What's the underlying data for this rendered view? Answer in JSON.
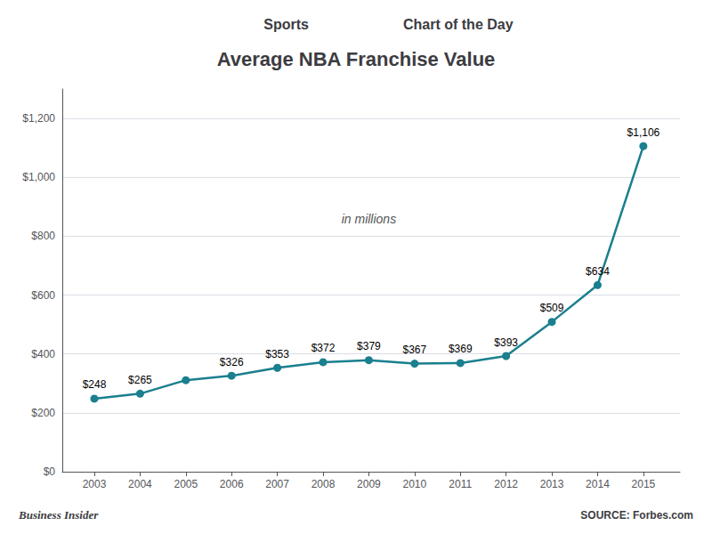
{
  "chart_data": {
    "type": "line",
    "title": "Average NBA Franchise Value",
    "header": [
      "Sports",
      "Chart of the Day"
    ],
    "footer": [
      "Business Insider",
      "SOURCE: Forbes.com"
    ],
    "annotations": [
      {
        "text": "in millions",
        "x": 2009,
        "y": 860
      }
    ],
    "x": [
      2003,
      2004,
      2005,
      2006,
      2007,
      2008,
      2009,
      2010,
      2011,
      2012,
      2013,
      2014,
      2015
    ],
    "values": [
      248,
      265,
      311,
      326,
      353,
      372,
      379,
      367,
      369,
      393,
      509,
      634,
      1106
    ],
    "value_labels": [
      "$248",
      "$265",
      null,
      "$326",
      "$353",
      "$372",
      "$379",
      "$367",
      "$369",
      "$393",
      "$509",
      "$634",
      "$1,106"
    ],
    "data_labels": true,
    "color": "#1a7f8e",
    "marker": "circle",
    "xlim": [
      2002.3,
      2015.8
    ],
    "xticks": [
      2003,
      2004,
      2005,
      2006,
      2007,
      2008,
      2009,
      2010,
      2011,
      2012,
      2013,
      2014,
      2015
    ],
    "ylim": [
      0,
      1300
    ],
    "yticks": [
      {
        "value": 0,
        "label": "$0"
      },
      {
        "value": 200,
        "label": "$200"
      },
      {
        "value": 400,
        "label": "$400"
      },
      {
        "value": 600,
        "label": "$600"
      },
      {
        "value": 800,
        "label": "$800"
      },
      {
        "value": 1000,
        "label": "$1,000"
      },
      {
        "value": 1200,
        "label": "$1,200"
      }
    ],
    "grid": true
  }
}
